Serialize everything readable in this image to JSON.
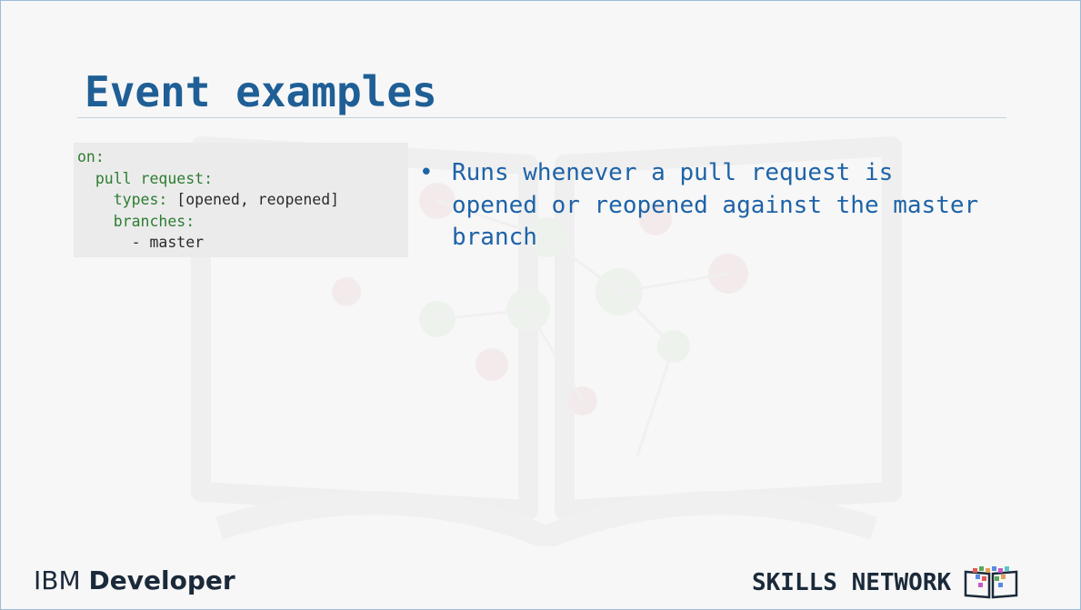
{
  "slide": {
    "title": "Event examples",
    "code": {
      "lines": [
        {
          "key": "on:",
          "value": ""
        },
        {
          "key": "  pull request:",
          "value": ""
        },
        {
          "key": "    types:",
          "value": " [opened, reopened]"
        },
        {
          "key": "    branches:",
          "value": ""
        },
        {
          "key": "",
          "value": "      - master"
        }
      ]
    },
    "bullets": [
      {
        "marker": "•",
        "lines": [
          "Runs whenever a pull request is",
          "opened or reopened against the master",
          "branch"
        ]
      }
    ],
    "footer": {
      "left_brand_a": "IBM",
      "left_brand_b": "Developer",
      "right_brand": "SKILLS NETWORK"
    }
  },
  "colors": {
    "title": "#1f5f96",
    "bullet_text": "#1e63a8",
    "code_key": "#2e7d32",
    "code_bg": "#ebebeb",
    "footer_text": "#1b2a3a"
  },
  "icons": {
    "watermark": "book-network-watermark-icon",
    "logo": "skills-network-book-logo-icon"
  }
}
